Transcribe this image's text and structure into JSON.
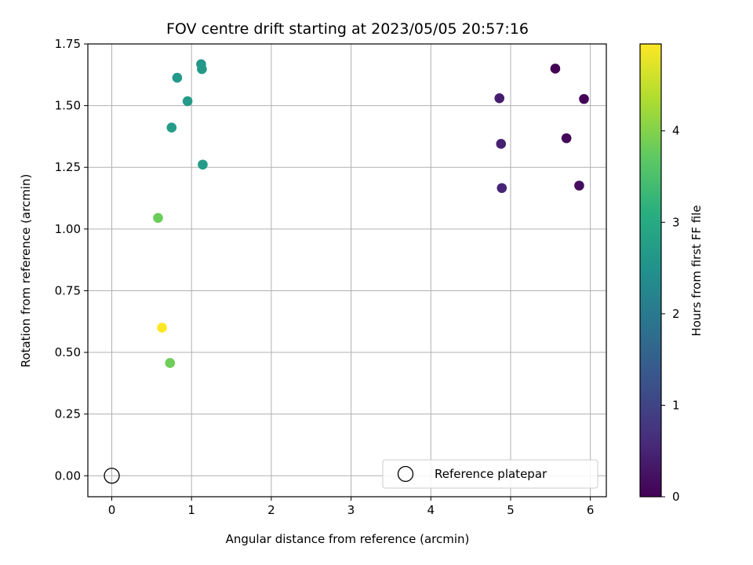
{
  "chart_data": {
    "type": "scatter",
    "title": "FOV centre drift starting at 2023/05/05 20:57:16",
    "xlabel": "Angular distance from reference (arcmin)",
    "ylabel": "Rotation from reference (arcmin)",
    "xlim": [
      -0.3,
      6.2
    ],
    "ylim": [
      -0.085,
      1.75
    ],
    "xticks": [
      0,
      1,
      2,
      3,
      4,
      5,
      6
    ],
    "yticks": [
      0.0,
      0.25,
      0.5,
      0.75,
      1.0,
      1.25,
      1.5,
      1.75
    ],
    "ytick_labels": [
      "0.00",
      "0.25",
      "0.50",
      "0.75",
      "1.00",
      "1.25",
      "1.50",
      "1.75"
    ],
    "grid": true,
    "colormap": "viridis",
    "colorbar": {
      "label": "Hours from first FF file",
      "range": [
        0,
        4.95
      ],
      "ticks": [
        0,
        1,
        2,
        3,
        4
      ]
    },
    "points": [
      {
        "x": 5.56,
        "y": 1.65,
        "hours": 0.0
      },
      {
        "x": 5.92,
        "y": 1.527,
        "hours": 0.05
      },
      {
        "x": 5.7,
        "y": 1.368,
        "hours": 0.1
      },
      {
        "x": 5.86,
        "y": 1.176,
        "hours": 0.15
      },
      {
        "x": 4.86,
        "y": 1.53,
        "hours": 0.4
      },
      {
        "x": 4.88,
        "y": 1.345,
        "hours": 0.45
      },
      {
        "x": 4.89,
        "y": 1.166,
        "hours": 0.5
      },
      {
        "x": 1.12,
        "y": 1.668,
        "hours": 2.6
      },
      {
        "x": 1.13,
        "y": 1.648,
        "hours": 2.62
      },
      {
        "x": 0.82,
        "y": 1.613,
        "hours": 2.65
      },
      {
        "x": 0.95,
        "y": 1.518,
        "hours": 2.68
      },
      {
        "x": 0.75,
        "y": 1.411,
        "hours": 2.7
      },
      {
        "x": 1.14,
        "y": 1.261,
        "hours": 2.72
      },
      {
        "x": 0.58,
        "y": 1.045,
        "hours": 3.8
      },
      {
        "x": 0.73,
        "y": 0.457,
        "hours": 3.85
      },
      {
        "x": 0.63,
        "y": 0.6,
        "hours": 4.95
      }
    ],
    "reference": {
      "x": 0,
      "y": 0,
      "label": "Reference platepar"
    },
    "legend": {
      "position": "lower-right",
      "entries": [
        "Reference platepar"
      ]
    }
  }
}
